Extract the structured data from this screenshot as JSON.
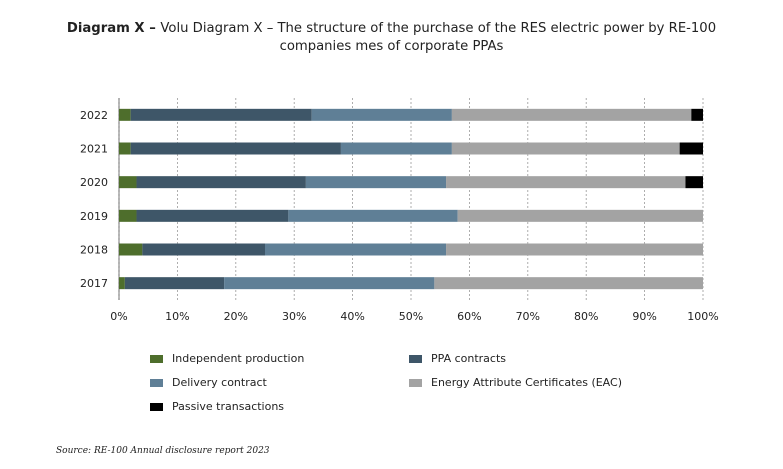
{
  "title": {
    "bold": "Diagram X – ",
    "rest": "Volu Diagram X – The structure of the purchase of the RES electric power by RE-100 companies mes of corporate PPAs"
  },
  "source": "Source: RE-100 Annual disclosure report 2023",
  "chart_data": {
    "type": "bar",
    "orientation": "horizontal",
    "stacked": "percent",
    "categories": [
      "2022",
      "2021",
      "2020",
      "2019",
      "2018",
      "2017"
    ],
    "series": [
      {
        "name": "Independent production",
        "color": "#4e6e2c",
        "values": [
          2,
          2,
          3,
          3,
          4,
          1
        ]
      },
      {
        "name": "PPA contracts",
        "color": "#3e5668",
        "values": [
          31,
          36,
          29,
          26,
          21,
          17
        ]
      },
      {
        "name": "Delivery contract",
        "color": "#5f7f96",
        "values": [
          24,
          19,
          24,
          29,
          31,
          36
        ]
      },
      {
        "name": "Energy Attribute Certificates (EAC)",
        "color": "#a3a3a3",
        "values": [
          41,
          39,
          41,
          42,
          44,
          46
        ]
      },
      {
        "name": "Passive transactions",
        "color": "#000000",
        "values": [
          2,
          4,
          3,
          0,
          0,
          0
        ]
      }
    ],
    "xlim": [
      0,
      100
    ],
    "xticks": [
      "0%",
      "10%",
      "20%",
      "30%",
      "40%",
      "50%",
      "60%",
      "70%",
      "80%",
      "90%",
      "100%"
    ],
    "grid": "vertical dashed",
    "legend_position": "bottom"
  }
}
